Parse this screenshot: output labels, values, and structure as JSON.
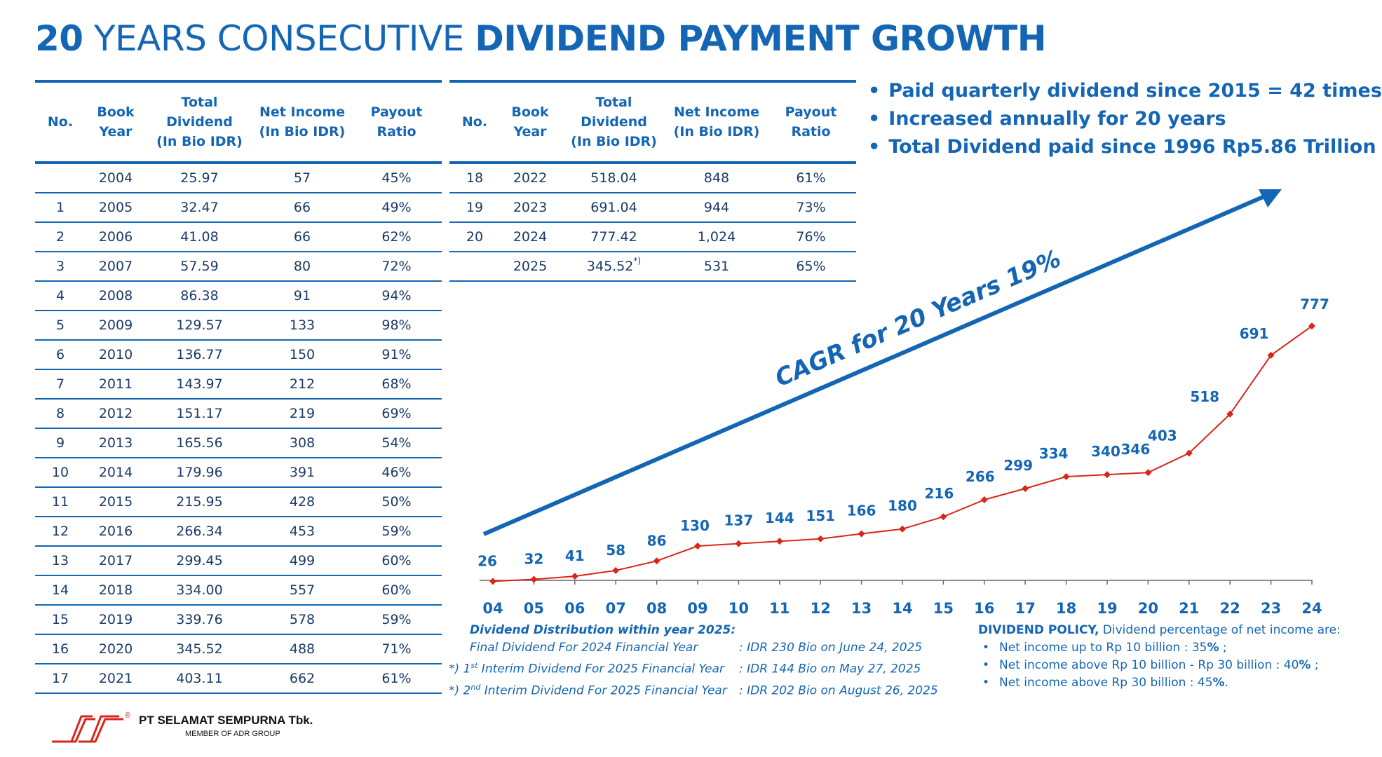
{
  "title": {
    "part1": "20",
    "part2": " YEARS CONSECUTIVE ",
    "part3": "DIVIDEND PAYMENT GROWTH"
  },
  "table": {
    "headers": {
      "no": "No.",
      "book_year": [
        "Book",
        "Year"
      ],
      "total_dividend": [
        "Total",
        "Dividend",
        "(In Bio IDR)"
      ],
      "net_income": [
        "Net Income",
        "(In Bio IDR)"
      ],
      "payout_ratio": [
        "Payout",
        "Ratio"
      ]
    },
    "rows_left": [
      {
        "no": "",
        "year": "2004",
        "dividend": "25.97",
        "net_income": "57",
        "payout": "45%"
      },
      {
        "no": "1",
        "year": "2005",
        "dividend": "32.47",
        "net_income": "66",
        "payout": "49%"
      },
      {
        "no": "2",
        "year": "2006",
        "dividend": "41.08",
        "net_income": "66",
        "payout": "62%"
      },
      {
        "no": "3",
        "year": "2007",
        "dividend": "57.59",
        "net_income": "80",
        "payout": "72%"
      },
      {
        "no": "4",
        "year": "2008",
        "dividend": "86.38",
        "net_income": "91",
        "payout": "94%"
      },
      {
        "no": "5",
        "year": "2009",
        "dividend": "129.57",
        "net_income": "133",
        "payout": "98%"
      },
      {
        "no": "6",
        "year": "2010",
        "dividend": "136.77",
        "net_income": "150",
        "payout": "91%"
      },
      {
        "no": "7",
        "year": "2011",
        "dividend": "143.97",
        "net_income": "212",
        "payout": "68%"
      },
      {
        "no": "8",
        "year": "2012",
        "dividend": "151.17",
        "net_income": "219",
        "payout": "69%"
      },
      {
        "no": "9",
        "year": "2013",
        "dividend": "165.56",
        "net_income": "308",
        "payout": "54%"
      },
      {
        "no": "10",
        "year": "2014",
        "dividend": "179.96",
        "net_income": "391",
        "payout": "46%"
      },
      {
        "no": "11",
        "year": "2015",
        "dividend": "215.95",
        "net_income": "428",
        "payout": "50%"
      },
      {
        "no": "12",
        "year": "2016",
        "dividend": "266.34",
        "net_income": "453",
        "payout": "59%"
      },
      {
        "no": "13",
        "year": "2017",
        "dividend": "299.45",
        "net_income": "499",
        "payout": "60%"
      },
      {
        "no": "14",
        "year": "2018",
        "dividend": "334.00",
        "net_income": "557",
        "payout": "60%"
      },
      {
        "no": "15",
        "year": "2019",
        "dividend": "339.76",
        "net_income": "578",
        "payout": "59%"
      },
      {
        "no": "16",
        "year": "2020",
        "dividend": "345.52",
        "net_income": "488",
        "payout": "71%"
      },
      {
        "no": "17",
        "year": "2021",
        "dividend": "403.11",
        "net_income": "662",
        "payout": "61%"
      }
    ],
    "rows_right": [
      {
        "no": "18",
        "year": "2022",
        "dividend": "518.04",
        "net_income": "848",
        "payout": "61%"
      },
      {
        "no": "19",
        "year": "2023",
        "dividend": "691.04",
        "net_income": "944",
        "payout": "73%"
      },
      {
        "no": "20",
        "year": "2024",
        "dividend": "777.42",
        "net_income": "1,024",
        "payout": "76%"
      },
      {
        "no": "",
        "year": "2025",
        "dividend": "345.52",
        "dividend_note": "*)",
        "net_income": "531",
        "payout": "65%"
      }
    ]
  },
  "bullets": [
    "Paid quarterly dividend since 2015 = 42 times",
    "Increased annually for 20 years",
    "Total Dividend paid since 1996 Rp5.86 Trillion"
  ],
  "chart_data": {
    "type": "line",
    "categories": [
      "04",
      "05",
      "06",
      "07",
      "08",
      "09",
      "10",
      "11",
      "12",
      "13",
      "14",
      "15",
      "16",
      "17",
      "18",
      "19",
      "20",
      "21",
      "22",
      "23",
      "24"
    ],
    "series": [
      {
        "values": [
          26,
          32,
          41,
          58,
          86,
          130,
          137,
          144,
          151,
          166,
          180,
          216,
          266,
          299,
          334,
          340,
          346,
          403,
          518,
          691,
          777
        ]
      }
    ],
    "data_labels": [
      "26",
      "32",
      "41",
      "58",
      "86",
      "130",
      "137",
      "144",
      "151",
      "166",
      "180",
      "216",
      "266",
      "299",
      "334",
      "340",
      "346",
      "403",
      "518",
      "691",
      "777"
    ],
    "annotation": "CAGR for 20 Years 19%",
    "xlabel": "",
    "ylabel": "",
    "ylim": [
      0,
      800
    ],
    "grid": false,
    "colors": {
      "line": "#d9261c",
      "labels": "#1466b4",
      "arrow": "#1466b4",
      "axis": "#666666"
    }
  },
  "notes": {
    "heading": "Dividend Distribution within year 2025:",
    "rows": [
      {
        "prefix": "",
        "ord": "",
        "label": "Final Dividend For 2024 Financial Year",
        "value": ": IDR 230 Bio on June 24, 2025"
      },
      {
        "prefix": "*) 1",
        "ord": "st",
        "label": " Interim Dividend For 2025 Financial Year",
        "value": ": IDR 144 Bio on May 27, 2025"
      },
      {
        "prefix": "*) 2",
        "ord": "nd",
        "label": " Interim Dividend For 2025 Financial Year",
        "value": ": IDR 202 Bio on August 26, 2025"
      }
    ]
  },
  "policy": {
    "heading": "DIVIDEND POLICY,",
    "heading_rest": " Dividend percentage of net income are:",
    "items": [
      {
        "text": "Net income up to Rp 10 billion : 35",
        "pct": "%",
        "tail": " ;"
      },
      {
        "text": "Net income above Rp 10 billion - Rp 30 billion : 40",
        "pct": "%",
        "tail": " ;"
      },
      {
        "text": "Net income above Rp 30 billion : 45",
        "pct": "%",
        "tail": "."
      }
    ]
  },
  "footer": {
    "company": "PT SELAMAT SEMPURNA Tbk.",
    "member": "MEMBER OF ADR GROUP",
    "registered": "®"
  },
  "brand_colors": {
    "primary": "#1466b4",
    "line": "#d9261c",
    "logo": "#d9261c"
  }
}
